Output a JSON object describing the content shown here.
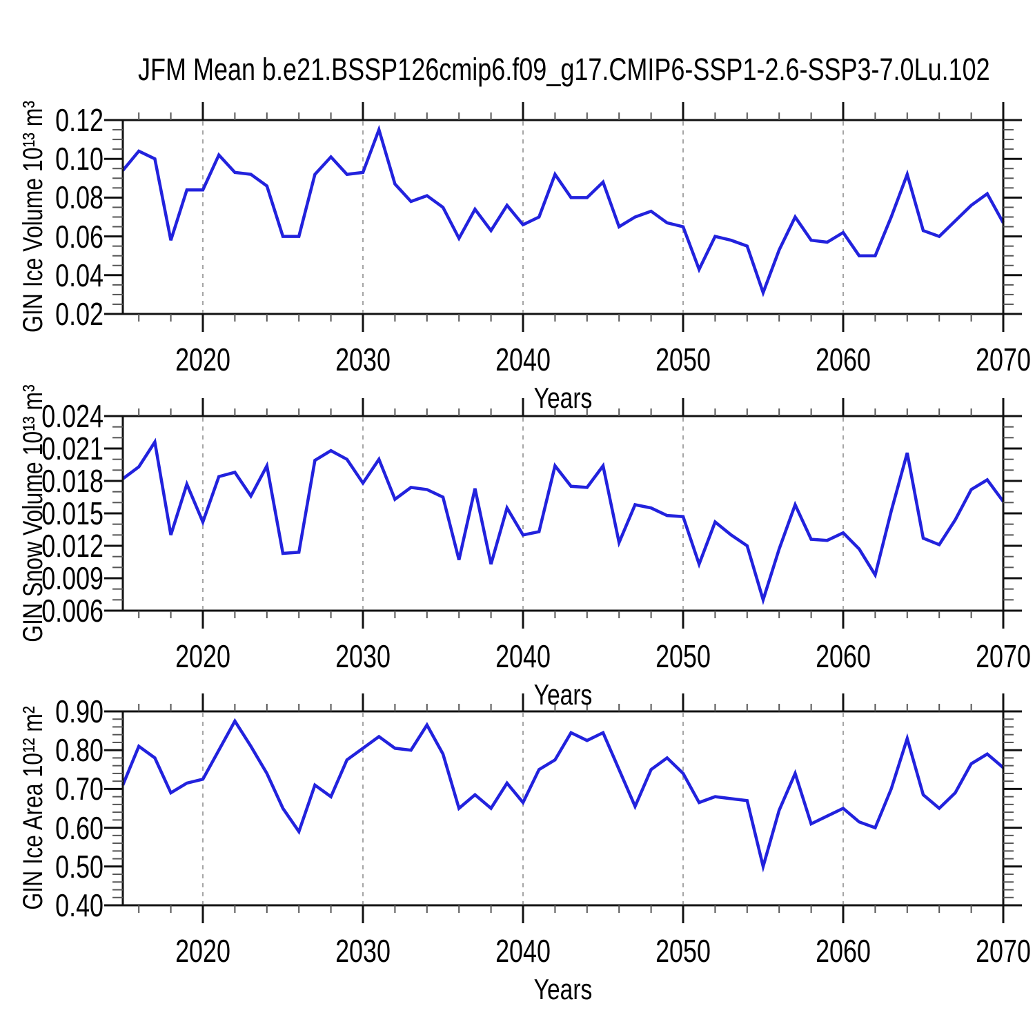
{
  "title": "JFM Mean b.e21.BSSP126cmip6.f09_g17.CMIP6-SSP1-2.6-SSP3-7.0Lu.102",
  "xlabel": "Years",
  "colors": {
    "line": "#2222dd",
    "frame": "#111111",
    "major_tick": "#111111",
    "minor_tick": "#555555",
    "grid": "#888888",
    "text": "#000000"
  },
  "years": [
    2015,
    2016,
    2017,
    2018,
    2019,
    2020,
    2021,
    2022,
    2023,
    2024,
    2025,
    2026,
    2027,
    2028,
    2029,
    2030,
    2031,
    2032,
    2033,
    2034,
    2035,
    2036,
    2037,
    2038,
    2039,
    2040,
    2041,
    2042,
    2043,
    2044,
    2045,
    2046,
    2047,
    2048,
    2049,
    2050,
    2051,
    2052,
    2053,
    2054,
    2055,
    2056,
    2057,
    2058,
    2059,
    2060,
    2061,
    2062,
    2063,
    2064,
    2065,
    2066,
    2067,
    2068,
    2069,
    2070
  ],
  "x_axis": {
    "range": [
      2015,
      2070
    ],
    "tick_years": [
      2020,
      2030,
      2040,
      2050,
      2060,
      2070
    ],
    "tick_labels": [
      "2020",
      "2030",
      "2040",
      "2050",
      "2060",
      "2070"
    ],
    "minor_step_years": 2,
    "grid_years": [
      2020,
      2030,
      2040,
      2050,
      2060
    ]
  },
  "chart_data": [
    {
      "type": "line",
      "ylabel": "GIN Ice Volume 10¹³ m³",
      "ylim": [
        0.02,
        0.12
      ],
      "ytick_values": [
        0.02,
        0.04,
        0.06,
        0.08,
        0.1,
        0.12
      ],
      "ytick_labels": [
        "0.02",
        "0.04",
        "0.06",
        "0.08",
        "0.10",
        "0.12"
      ],
      "y_minor_step": 0.005,
      "values": [
        0.094,
        0.104,
        0.1,
        0.058,
        0.084,
        0.084,
        0.102,
        0.093,
        0.092,
        0.086,
        0.06,
        0.06,
        0.092,
        0.101,
        0.092,
        0.093,
        0.115,
        0.087,
        0.078,
        0.081,
        0.075,
        0.059,
        0.074,
        0.063,
        0.076,
        0.066,
        0.07,
        0.092,
        0.08,
        0.08,
        0.088,
        0.065,
        0.07,
        0.073,
        0.067,
        0.065,
        0.043,
        0.06,
        0.058,
        0.055,
        0.031,
        0.053,
        0.07,
        0.058,
        0.057,
        0.062,
        0.05,
        0.05,
        0.07,
        0.092,
        0.063,
        0.06,
        0.068,
        0.076,
        0.082,
        0.067
      ]
    },
    {
      "type": "line",
      "ylabel": "GIN Snow Volume 10¹³ m³",
      "ylim": [
        0.006,
        0.024
      ],
      "ytick_values": [
        0.006,
        0.009,
        0.012,
        0.015,
        0.018,
        0.021,
        0.024
      ],
      "ytick_labels": [
        "0.006",
        "0.009",
        "0.012",
        "0.015",
        "0.018",
        "0.021",
        "0.024"
      ],
      "y_minor_step": 0.001,
      "values": [
        0.0182,
        0.0193,
        0.0216,
        0.013,
        0.0177,
        0.0142,
        0.0184,
        0.0188,
        0.0166,
        0.0194,
        0.0113,
        0.0114,
        0.0199,
        0.0208,
        0.02,
        0.0178,
        0.02,
        0.0163,
        0.0174,
        0.0172,
        0.0165,
        0.0107,
        0.0173,
        0.0103,
        0.0155,
        0.013,
        0.0133,
        0.0194,
        0.0175,
        0.0174,
        0.0194,
        0.0123,
        0.0158,
        0.0155,
        0.0148,
        0.0147,
        0.0103,
        0.0142,
        0.013,
        0.012,
        0.007,
        0.0117,
        0.0158,
        0.0126,
        0.0125,
        0.0132,
        0.0117,
        0.0093,
        0.0152,
        0.0206,
        0.0127,
        0.0121,
        0.0144,
        0.0172,
        0.0181,
        0.0161
      ]
    },
    {
      "type": "line",
      "ylabel": "GIN Ice Area 10¹² m²",
      "ylim": [
        0.4,
        0.9
      ],
      "ytick_values": [
        0.4,
        0.5,
        0.6,
        0.7,
        0.8,
        0.9
      ],
      "ytick_labels": [
        "0.40",
        "0.50",
        "0.60",
        "0.70",
        "0.80",
        "0.90"
      ],
      "y_minor_step": 0.02,
      "values": [
        0.71,
        0.81,
        0.78,
        0.69,
        0.715,
        0.725,
        0.8,
        0.875,
        0.81,
        0.74,
        0.65,
        0.59,
        0.71,
        0.68,
        0.775,
        0.805,
        0.835,
        0.805,
        0.8,
        0.865,
        0.79,
        0.65,
        0.685,
        0.65,
        0.715,
        0.665,
        0.75,
        0.775,
        0.845,
        0.825,
        0.845,
        0.75,
        0.655,
        0.75,
        0.78,
        0.74,
        0.665,
        0.68,
        0.675,
        0.67,
        0.5,
        0.645,
        0.74,
        0.61,
        0.63,
        0.65,
        0.615,
        0.6,
        0.7,
        0.83,
        0.685,
        0.65,
        0.69,
        0.765,
        0.79,
        0.755
      ]
    }
  ]
}
